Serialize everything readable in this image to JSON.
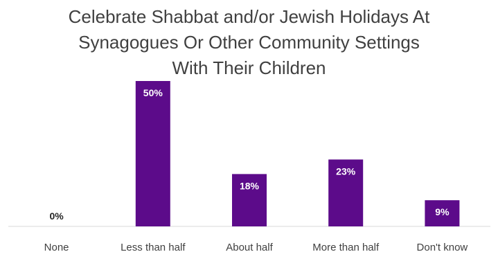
{
  "title_lines": [
    "Celebrate Shabbat and/or Jewish Holidays At",
    "Synagogues Or Other Community Settings",
    "With Their Children"
  ],
  "chart_data": {
    "type": "bar",
    "title": "Celebrate Shabbat and/or Jewish Holidays At Synagogues Or Other Community Settings With Their Children",
    "categories": [
      "None",
      "Less than half",
      "About half",
      "More than half",
      "Don't know"
    ],
    "values": [
      0,
      50,
      18,
      23,
      9
    ],
    "data_labels": [
      "0%",
      "50%",
      "18%",
      "23%",
      "9%"
    ],
    "ylim": [
      0,
      50
    ],
    "grid": false,
    "legend": "none",
    "colors": {
      "bar": "#5C0B8A",
      "label_inside": "#FFFFFF",
      "label_outside": "#262626",
      "axis": "#D9D9D9"
    }
  }
}
